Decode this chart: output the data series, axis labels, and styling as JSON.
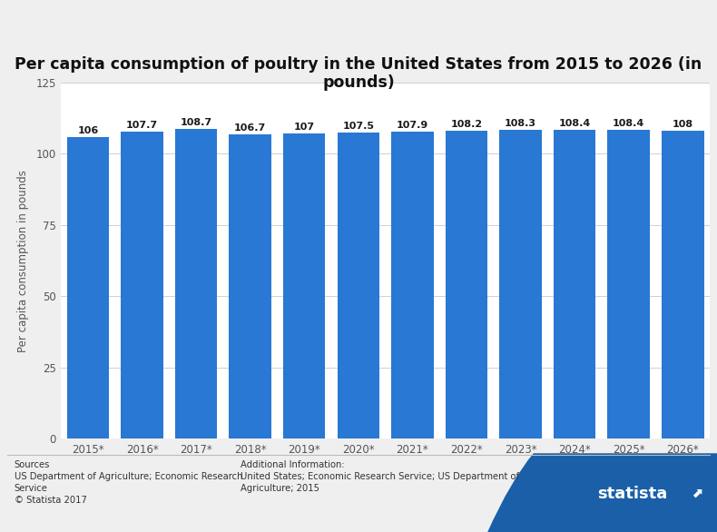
{
  "title": "Per capita consumption of poultry in the United States from 2015 to 2026 (in\npounds)",
  "ylabel": "Per capita consumption in pounds",
  "categories": [
    "2015*",
    "2016*",
    "2017*",
    "2018*",
    "2019*",
    "2020*",
    "2021*",
    "2022*",
    "2023*",
    "2024*",
    "2025*",
    "2026*"
  ],
  "values": [
    106,
    107.7,
    108.7,
    106.7,
    107,
    107.5,
    107.9,
    108.2,
    108.3,
    108.4,
    108.4,
    108
  ],
  "bar_color": "#2878d4",
  "ylim": [
    0,
    125
  ],
  "yticks": [
    0,
    25,
    50,
    75,
    100,
    125
  ],
  "bg_color": "#efefef",
  "plot_bg_color": "#ffffff",
  "grid_color": "#d0d0d0",
  "title_fontsize": 12.5,
  "label_fontsize": 8.5,
  "tick_fontsize": 8.5,
  "value_fontsize": 8,
  "footer_sources": "Sources\nUS Department of Agriculture; Economic Research\nService\n© Statista 2017",
  "footer_additional": "Additional Information:\nUnited States; Economic Research Service; US Department of\nAgriculture; 2015",
  "logo_color": "#1a5276",
  "logo_wave_color": "#1f618d"
}
